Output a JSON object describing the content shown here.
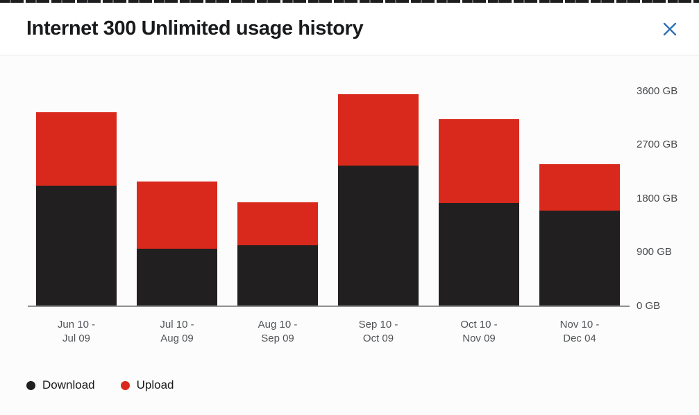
{
  "modal": {
    "title": "Internet 300 Unlimited usage history"
  },
  "chart_data": {
    "type": "bar",
    "stacked": true,
    "title": "Internet 300 Unlimited usage history",
    "unit": "GB",
    "categories": [
      [
        "Jun 10 -",
        "Jul 09"
      ],
      [
        "Jul 10 -",
        "Aug 09"
      ],
      [
        "Aug 10 -",
        "Sep 09"
      ],
      [
        "Sep 10 -",
        "Oct 09"
      ],
      [
        "Oct 10 -",
        "Nov 09"
      ],
      [
        "Nov 10 -",
        "Dec 04"
      ]
    ],
    "series": [
      {
        "name": "Download",
        "color": "#211F20",
        "values": [
          2010,
          950,
          1005,
          2350,
          1720,
          1590
        ]
      },
      {
        "name": "Upload",
        "color": "#D9291C",
        "values": [
          1230,
          1130,
          715,
          1200,
          1405,
          775
        ]
      }
    ],
    "ylim": [
      0,
      3600
    ],
    "y_ticks": [
      {
        "value": 0,
        "label": "0 GB"
      },
      {
        "value": 900,
        "label": "900 GB"
      },
      {
        "value": 1800,
        "label": "1800 GB"
      },
      {
        "value": 2700,
        "label": "2700 GB"
      },
      {
        "value": 3600,
        "label": "3600 GB"
      }
    ],
    "grid": false,
    "legend_position": "bottom-left"
  },
  "legend": {
    "items": [
      {
        "label": "Download",
        "color": "#211F20"
      },
      {
        "label": "Upload",
        "color": "#D9291C"
      }
    ]
  },
  "colors": {
    "download": "#211F20",
    "upload": "#D9291C",
    "close_icon": "#2E6FB4",
    "axis_line": "#8F8F8F",
    "header_divider": "#E9E9E9"
  }
}
